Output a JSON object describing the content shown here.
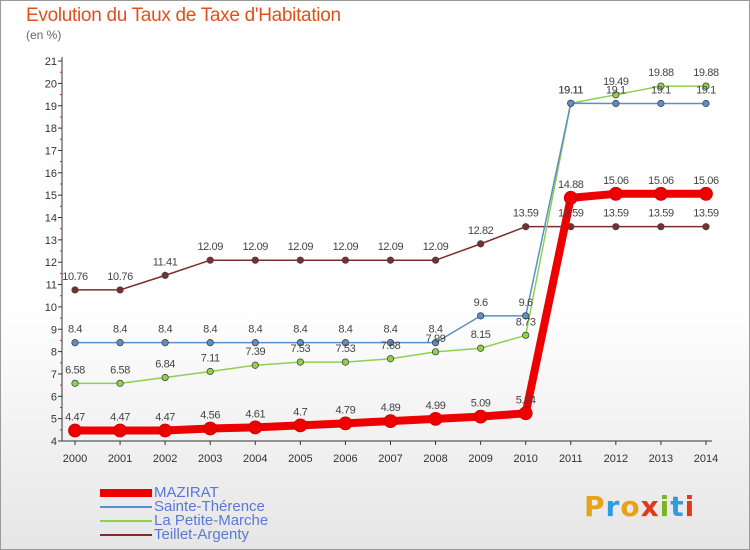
{
  "title": "Evolution du Taux de Taxe d'Habitation",
  "unit_label": "(en %)",
  "logo": {
    "text": "Proxiti",
    "letters": [
      "P",
      "r",
      "o",
      "x",
      "i",
      "t",
      "i"
    ],
    "colors": [
      "#e8a21a",
      "#2f9be0",
      "#e8a21a",
      "#e03a1e",
      "#7ab51d",
      "#2f9be0",
      "#e03a1e"
    ]
  },
  "chart_data": {
    "type": "line",
    "title": "Evolution du Taux de Taxe d'Habitation",
    "ylabel": "(en %)",
    "xlabel": "",
    "x": [
      "2000",
      "2001",
      "2002",
      "2003",
      "2004",
      "2005",
      "2006",
      "2007",
      "2008",
      "2009",
      "2010",
      "2011",
      "2012",
      "2013",
      "2014"
    ],
    "ylim": [
      4,
      21
    ],
    "yticks": [
      "4",
      "5",
      "6",
      "7",
      "8",
      "9",
      "10",
      "11",
      "12",
      "13",
      "14",
      "15",
      "16",
      "17",
      "18",
      "19",
      "20",
      "21"
    ],
    "grid": false,
    "legend_position": "bottom-left",
    "series": [
      {
        "name": "MAZIRAT",
        "color": "#ee0000",
        "values": [
          4.47,
          4.47,
          4.47,
          4.56,
          4.61,
          4.7,
          4.79,
          4.89,
          4.99,
          5.09,
          5.24,
          14.88,
          15.06,
          15.06,
          15.06
        ],
        "labels": [
          "4.47",
          "4.47",
          "4.47",
          "4.56",
          "4.61",
          "4.7",
          "4.79",
          "4.89",
          "4.99",
          "5.09",
          "5.24",
          "14.88",
          "15.06",
          "15.06",
          "15.06"
        ]
      },
      {
        "name": "Sainte-Thérence",
        "color": "#5b8fc7",
        "values": [
          8.4,
          8.4,
          8.4,
          8.4,
          8.4,
          8.4,
          8.4,
          8.4,
          8.4,
          9.6,
          9.6,
          19.11,
          19.1,
          19.1,
          19.1
        ],
        "labels": [
          "8.4",
          "8.4",
          "8.4",
          "8.4",
          "8.4",
          "8.4",
          "8.4",
          "8.4",
          "8.4",
          "9.6",
          "9.6",
          "19.11",
          "19.1",
          "19.1",
          "19.1"
        ]
      },
      {
        "name": "La Petite-Marche",
        "color": "#8fd14f",
        "values": [
          6.58,
          6.58,
          6.84,
          7.11,
          7.39,
          7.53,
          7.53,
          7.68,
          7.99,
          8.15,
          8.73,
          19.11,
          19.49,
          19.88,
          19.88
        ],
        "labels": [
          "6.58",
          "6.58",
          "6.84",
          "7.11",
          "7.39",
          "7.53",
          "7.53",
          "7.68",
          "7.99",
          "8.15",
          "8.73",
          "19.11",
          "19.49",
          "19.88",
          "19.88"
        ]
      },
      {
        "name": "Teillet-Argenty",
        "color": "#7a2e2e",
        "values": [
          10.76,
          10.76,
          11.41,
          12.09,
          12.09,
          12.09,
          12.09,
          12.09,
          12.09,
          12.82,
          13.59,
          13.59,
          13.59,
          13.59,
          13.59
        ],
        "labels": [
          "10.76",
          "10.76",
          "11.41",
          "12.09",
          "12.09",
          "12.09",
          "12.09",
          "12.09",
          "12.09",
          "12.82",
          "13.59",
          "13.59",
          "13.59",
          "13.59",
          "13.59"
        ]
      }
    ]
  }
}
